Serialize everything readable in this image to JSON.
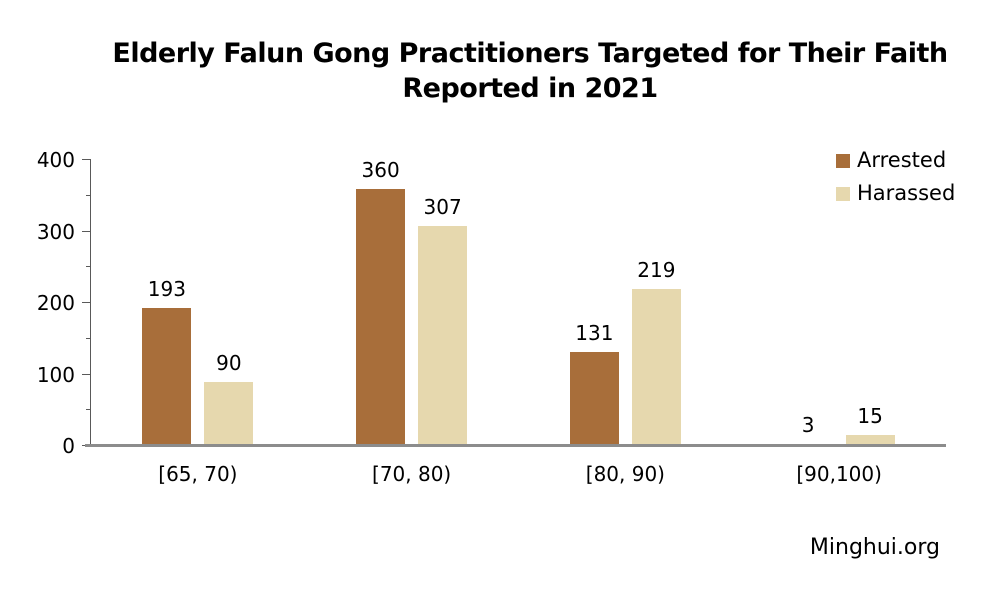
{
  "chart_data": {
    "type": "bar",
    "title": "Elderly Falun Gong Practitioners Targeted for Their Faith Reported in 2021",
    "categories": [
      "[65, 70)",
      "[70, 80)",
      "[80, 90)",
      "[90,100)"
    ],
    "series": [
      {
        "name": "Arrested",
        "color": "#A86E3A",
        "values": [
          193,
          360,
          131,
          3
        ]
      },
      {
        "name": "Harassed",
        "color": "#E6D8AE",
        "values": [
          90,
          307,
          219,
          15
        ]
      }
    ],
    "xlabel": "",
    "ylabel": "",
    "ylim": [
      0,
      400
    ],
    "yticks": [
      0,
      100,
      200,
      300,
      400
    ],
    "minor_yticks": [
      50,
      150,
      250,
      350
    ],
    "grid": false,
    "legend_position": "top-right",
    "value_labels": true,
    "source_label": "Minghui.org"
  },
  "colors": {
    "axis_line": "#595959",
    "baseline": "#8C8C8C",
    "text": "#000000",
    "background": "#FFFFFF"
  }
}
